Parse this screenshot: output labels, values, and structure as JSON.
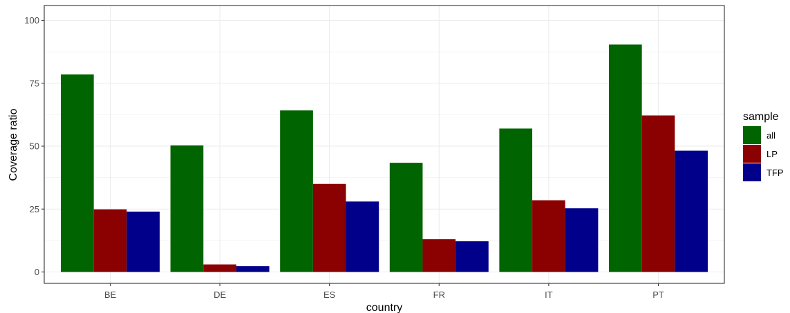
{
  "chart_data": {
    "type": "bar",
    "xlabel": "country",
    "ylabel": "Coverage ratio",
    "ylim": [
      0,
      104
    ],
    "yticks": [
      0,
      25,
      50,
      75,
      100
    ],
    "grid": true,
    "legend_title": "sample",
    "legend_position": "right",
    "categories": [
      "BE",
      "DE",
      "ES",
      "FR",
      "IT",
      "PT"
    ],
    "series": [
      {
        "name": "all",
        "color": "#006400",
        "values": [
          78.5,
          50.3,
          64.2,
          43.4,
          57.0,
          90.4
        ]
      },
      {
        "name": "LP",
        "color": "#8b0000",
        "values": [
          24.9,
          3.0,
          35.0,
          13.0,
          28.5,
          62.2
        ]
      },
      {
        "name": "TFP",
        "color": "#00008b",
        "values": [
          24.0,
          2.3,
          28.0,
          12.2,
          25.3,
          48.2
        ]
      }
    ]
  }
}
